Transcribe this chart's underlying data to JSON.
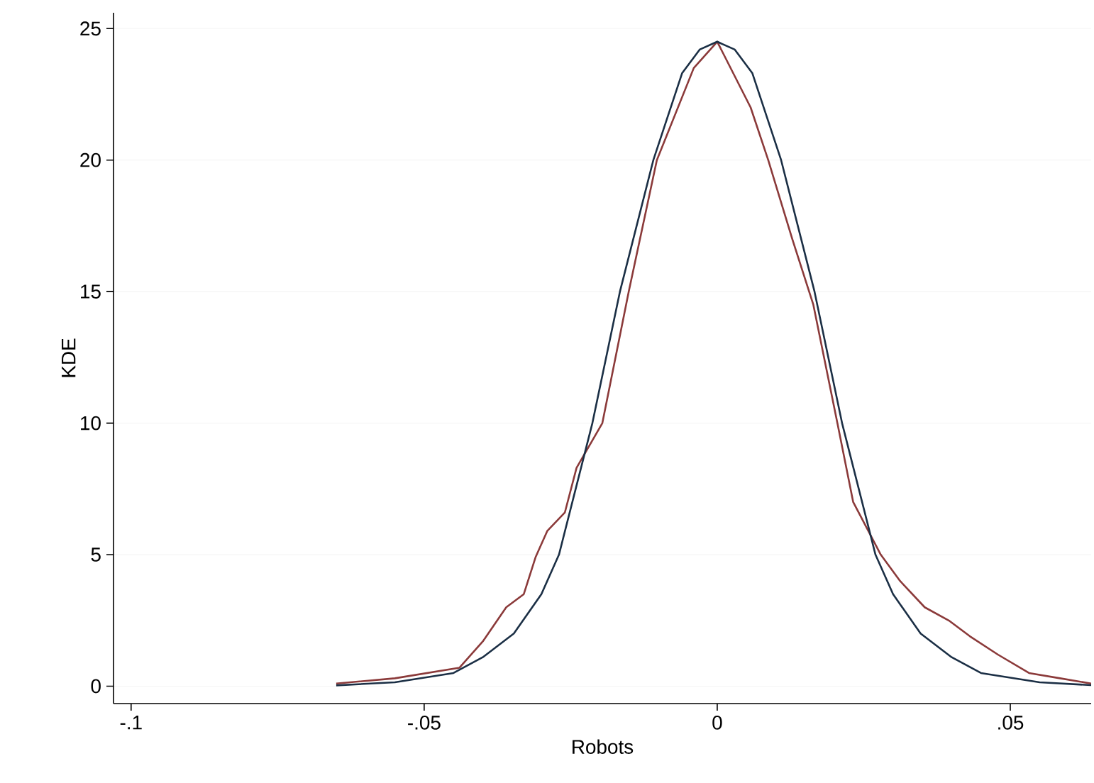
{
  "chart_data": {
    "type": "line",
    "xlabel": "Robots",
    "ylabel": "KDE",
    "xlim": [
      -0.103,
      0.0638
    ],
    "ylim": [
      -0.66,
      25.6
    ],
    "xticks": [
      {
        "value": -0.1,
        "label": "-.1"
      },
      {
        "value": -0.05,
        "label": "-.05"
      },
      0,
      {
        "value": 0.05,
        "label": ".05"
      }
    ],
    "yticks": [
      0,
      5,
      10,
      15,
      20,
      25
    ],
    "grid": "y",
    "marker": "none",
    "line_style": "solid",
    "series": [
      {
        "color": "#8b3a3a",
        "x": [
          -0.065,
          -0.055,
          -0.044,
          -0.04,
          -0.036,
          -0.033,
          -0.031,
          -0.029,
          -0.026,
          -0.024,
          -0.0196,
          -0.0151,
          -0.0103,
          -0.004,
          0,
          0.0057,
          0.0087,
          0.0128,
          0.0164,
          0.0205,
          0.0232,
          0.0279,
          0.0312,
          0.0354,
          0.0395,
          0.0431,
          0.0479,
          0.0532,
          0.0585,
          0.0638
        ],
        "values": [
          0.1,
          0.3,
          0.7,
          1.7,
          3.0,
          3.5,
          4.9,
          5.9,
          6.6,
          8.3,
          10,
          15,
          20,
          23.5,
          24.5,
          22,
          20,
          17,
          14.5,
          10,
          7,
          5,
          4,
          3,
          2.5,
          1.9,
          1.2,
          0.5,
          0.3,
          0.1
        ]
      },
      {
        "color": "#1b2f45",
        "x": [
          -0.065,
          -0.055,
          -0.045,
          -0.04,
          -0.0347,
          -0.03,
          -0.027,
          -0.0213,
          -0.0166,
          -0.0109,
          -0.006,
          -0.003,
          0,
          0.003,
          0.006,
          0.0109,
          0.0166,
          0.0213,
          0.027,
          0.03,
          0.0347,
          0.04,
          0.045,
          0.055,
          0.0638
        ],
        "values": [
          0.03,
          0.15,
          0.5,
          1.1,
          2,
          3.5,
          5,
          10,
          15,
          20,
          23.3,
          24.2,
          24.5,
          24.2,
          23.3,
          20,
          15,
          10,
          5,
          3.5,
          2,
          1.1,
          0.5,
          0.15,
          0.04
        ]
      }
    ]
  }
}
